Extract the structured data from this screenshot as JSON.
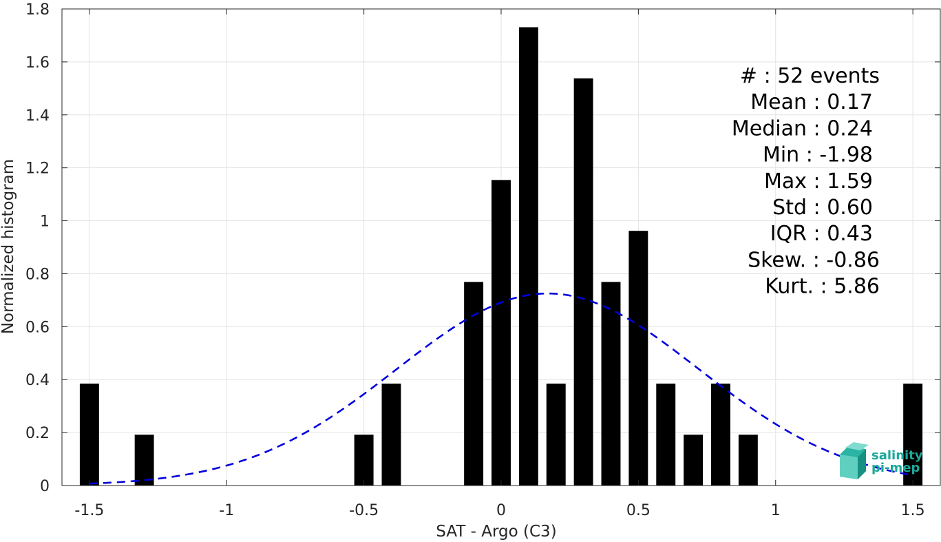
{
  "chart_data": {
    "type": "bar",
    "xlabel": "SAT - Argo (C3)",
    "ylabel": "Normalized histogram",
    "xlim": [
      -1.6,
      1.6
    ],
    "ylim": [
      0,
      1.8
    ],
    "x_ticks": [
      -1.5,
      -1,
      -0.5,
      0,
      0.5,
      1,
      1.5
    ],
    "x_tick_labels": [
      "-1.5",
      "-1",
      "-0.5",
      "0",
      "0.5",
      "1",
      "1.5"
    ],
    "y_ticks": [
      0,
      0.2,
      0.4,
      0.6,
      0.8,
      1,
      1.2,
      1.4,
      1.6,
      1.8
    ],
    "y_tick_labels": [
      "0",
      "0.2",
      "0.4",
      "0.6",
      "0.8",
      "1",
      "1.2",
      "1.4",
      "1.6",
      "1.8"
    ],
    "grid": true,
    "bar_width": 0.07,
    "bar_color": "#000000",
    "bins": [
      {
        "x": -1.5,
        "value": 0.385
      },
      {
        "x": -1.3,
        "value": 0.192
      },
      {
        "x": -0.5,
        "value": 0.192
      },
      {
        "x": -0.4,
        "value": 0.385
      },
      {
        "x": -0.1,
        "value": 0.769
      },
      {
        "x": 0.0,
        "value": 1.154
      },
      {
        "x": 0.1,
        "value": 1.731
      },
      {
        "x": 0.2,
        "value": 0.385
      },
      {
        "x": 0.3,
        "value": 1.538
      },
      {
        "x": 0.4,
        "value": 0.769
      },
      {
        "x": 0.5,
        "value": 0.962
      },
      {
        "x": 0.6,
        "value": 0.385
      },
      {
        "x": 0.7,
        "value": 0.192
      },
      {
        "x": 0.8,
        "value": 0.385
      },
      {
        "x": 0.9,
        "value": 0.192
      },
      {
        "x": 1.5,
        "value": 0.385
      }
    ],
    "fit_curve": {
      "kind": "gaussian",
      "mean": 0.17,
      "std": 0.55,
      "x_range": [
        -1.5,
        1.5
      ],
      "color": "#0000dd",
      "style": "dashed"
    },
    "annotations": [
      "#  : 52 events",
      "Mean : 0.17",
      "Median : 0.24",
      "Min : -1.98",
      "Max : 1.59",
      "Std : 0.60",
      "IQR : 0.43",
      "Skew. : -0.86",
      "Kurt. : 5.86"
    ]
  },
  "logo": {
    "line1": "salinity",
    "line2": "pi-mep",
    "color": "#1aa89a"
  }
}
